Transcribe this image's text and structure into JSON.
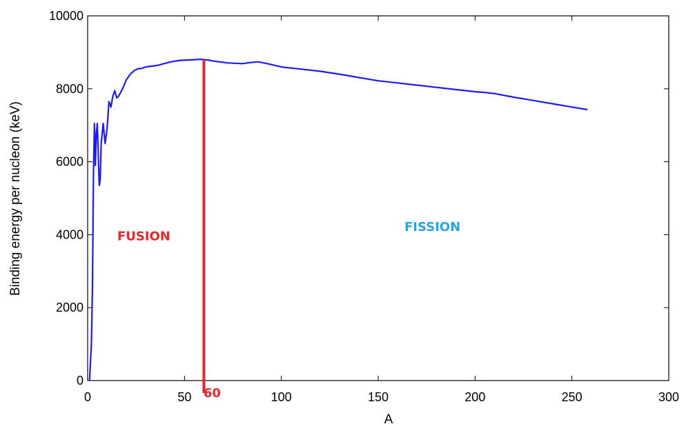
{
  "chart_data": {
    "type": "line",
    "title": "",
    "xlabel": "A",
    "ylabel": "Binding energy per nucleon (keV)",
    "xlim": [
      0,
      300
    ],
    "ylim": [
      0,
      10000
    ],
    "xticks": [
      0,
      50,
      100,
      150,
      200,
      250,
      300
    ],
    "yticks": [
      0,
      2000,
      4000,
      6000,
      8000,
      10000
    ],
    "grid": false,
    "series": [
      {
        "color": "#1a1aff",
        "x": [
          1,
          2,
          2.5,
          3,
          3.5,
          4,
          4.5,
          5,
          6,
          6.5,
          7,
          8,
          9,
          10,
          11,
          12,
          13,
          14,
          15,
          16,
          17,
          18,
          20,
          22,
          24,
          26,
          28,
          30,
          33,
          36,
          40,
          44,
          48,
          52,
          56,
          58,
          60,
          62,
          64,
          68,
          72,
          76,
          80,
          84,
          88,
          92,
          96,
          100,
          110,
          120,
          130,
          140,
          150,
          160,
          170,
          180,
          190,
          200,
          205,
          210,
          220,
          230,
          240,
          250,
          258
        ],
        "y": [
          0,
          1100,
          2600,
          5600,
          7050,
          5900,
          6800,
          7050,
          5350,
          5500,
          6500,
          7050,
          6500,
          6900,
          7650,
          7500,
          7800,
          7950,
          7750,
          7800,
          7900,
          8000,
          8250,
          8400,
          8500,
          8550,
          8560,
          8600,
          8620,
          8640,
          8700,
          8750,
          8780,
          8790,
          8800,
          8810,
          8800,
          8790,
          8770,
          8740,
          8710,
          8700,
          8690,
          8720,
          8740,
          8700,
          8650,
          8600,
          8540,
          8480,
          8400,
          8310,
          8220,
          8160,
          8100,
          8040,
          7980,
          7920,
          7900,
          7870,
          7770,
          7680,
          7590,
          7500,
          7430
        ]
      }
    ],
    "marker_line": {
      "x": 60,
      "label": "60",
      "color": "#e8262b"
    },
    "annotations": [
      {
        "text": "FUSION",
        "x": 29,
        "y": 3850,
        "color": "#e8262b"
      },
      {
        "text": "FISSION",
        "x": 178,
        "y": 4100,
        "color": "#2aa4e0"
      }
    ]
  }
}
